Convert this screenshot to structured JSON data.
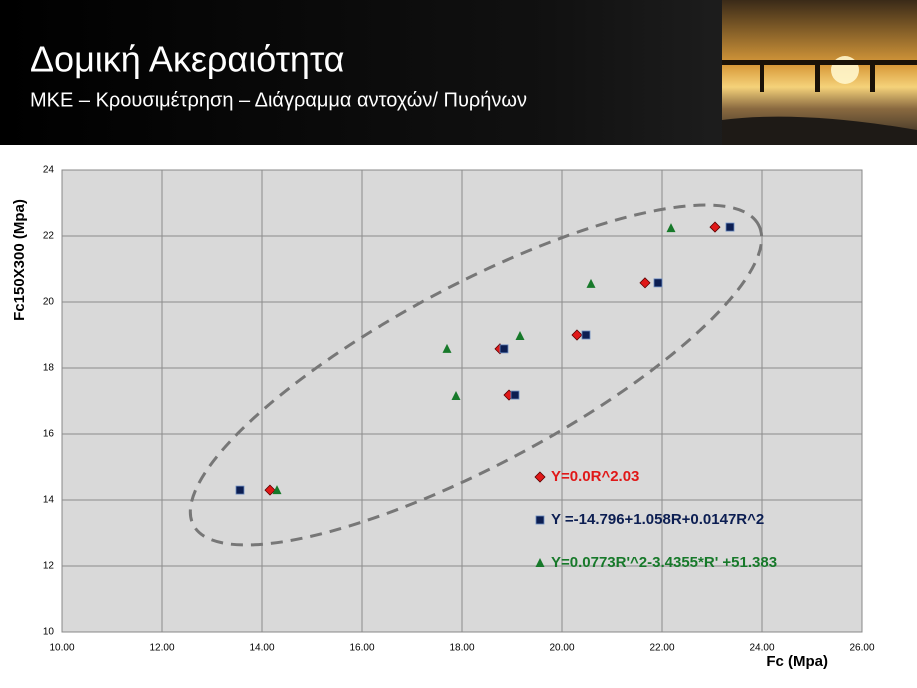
{
  "header": {
    "title": "Δομική Ακεραιότητα",
    "subtitle": "ΜΚΕ – Κρουσιμέτρηση  – Διάγραμμα  αντοχών/ Πυρήνων"
  },
  "chart_data": {
    "type": "scatter",
    "x_label": "Fc (Mpa)",
    "y_label": "Fc150X300  (Mpa)",
    "xlim": [
      10,
      26
    ],
    "xticks": [
      {
        "value": 10,
        "label": "10.00"
      },
      {
        "value": 12,
        "label": "12.00"
      },
      {
        "value": 14,
        "label": "14.00"
      },
      {
        "value": 16,
        "label": "16.00"
      },
      {
        "value": 18,
        "label": "18.00"
      },
      {
        "value": 20,
        "label": "20.00"
      },
      {
        "value": 22,
        "label": "22.00"
      },
      {
        "value": 24,
        "label": "24.00"
      },
      {
        "value": 26,
        "label": "26.00"
      }
    ],
    "ylim": [
      10,
      24
    ],
    "yticks": [
      10,
      12,
      14,
      16,
      18,
      20,
      22,
      24
    ],
    "grid": true,
    "series": [
      {
        "name": "Y=0.0R^2.03",
        "color": "#e01818",
        "marker": "diamond",
        "x": [
          14.16,
          18.94,
          18.76,
          20.3,
          21.66,
          23.06
        ],
        "values": [
          14.3,
          17.18,
          18.58,
          19.0,
          20.58,
          22.27
        ]
      },
      {
        "name": "Y =-14.796+1.058R+0.0147R^2",
        "color": "#0c1e52",
        "marker": "square",
        "x": [
          13.56,
          19.06,
          18.84,
          20.48,
          21.92,
          23.36
        ],
        "values": [
          14.3,
          17.18,
          18.58,
          19.0,
          20.58,
          22.27
        ]
      },
      {
        "name": "Y=0.0773R'^2-3.4355*R' +51.383",
        "color": "#17792a",
        "marker": "triangle",
        "x": [
          14.3,
          17.88,
          17.7,
          19.16,
          20.58,
          22.18
        ],
        "values": [
          14.3,
          17.15,
          18.58,
          18.97,
          20.55,
          22.24
        ]
      }
    ]
  }
}
